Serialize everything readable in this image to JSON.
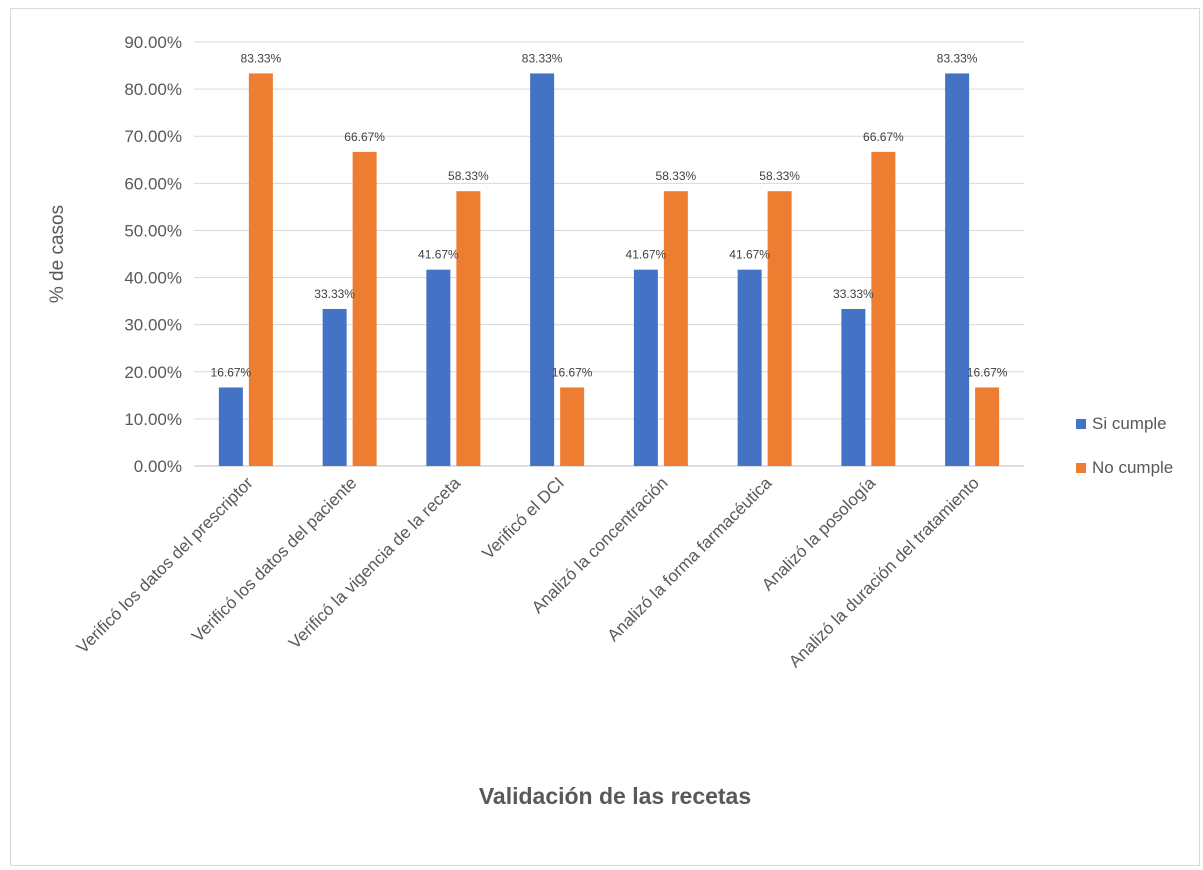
{
  "chart_data": {
    "type": "bar",
    "title": "",
    "xlabel": "Validación de las recetas",
    "ylabel": "% de casos",
    "ylim": [
      0,
      90
    ],
    "ytick_step": 10,
    "ytick_labels": [
      "0.00%",
      "10.00%",
      "20.00%",
      "30.00%",
      "40.00%",
      "50.00%",
      "60.00%",
      "70.00%",
      "80.00%",
      "90.00%"
    ],
    "grid": true,
    "legend_position": "right",
    "categories": [
      "Verificó los datos del prescriptor",
      "Verificó los datos del paciente",
      "Verificó la vigencia de la receta",
      "Verificó el DCI",
      "Analizó la concentración",
      "Analizó la forma farmacéutica",
      "Analizó la posología",
      "Analizó la duración del tratamiento"
    ],
    "series": [
      {
        "name": "Si cumple",
        "color": "#4472c4",
        "values": [
          16.67,
          33.33,
          41.67,
          83.33,
          41.67,
          41.67,
          33.33,
          83.33
        ],
        "labels": [
          "16.67%",
          "33.33%",
          "41.67%",
          "83.33%",
          "41.67%",
          "41.67%",
          "33.33%",
          "83.33%"
        ]
      },
      {
        "name": "No cumple",
        "color": "#ed7d31",
        "values": [
          83.33,
          66.67,
          58.33,
          16.67,
          58.33,
          58.33,
          66.67,
          16.67
        ],
        "labels": [
          "83.33%",
          "66.67%",
          "58.33%",
          "16.67%",
          "58.33%",
          "58.33%",
          "66.67%",
          "16.67%"
        ]
      }
    ]
  }
}
